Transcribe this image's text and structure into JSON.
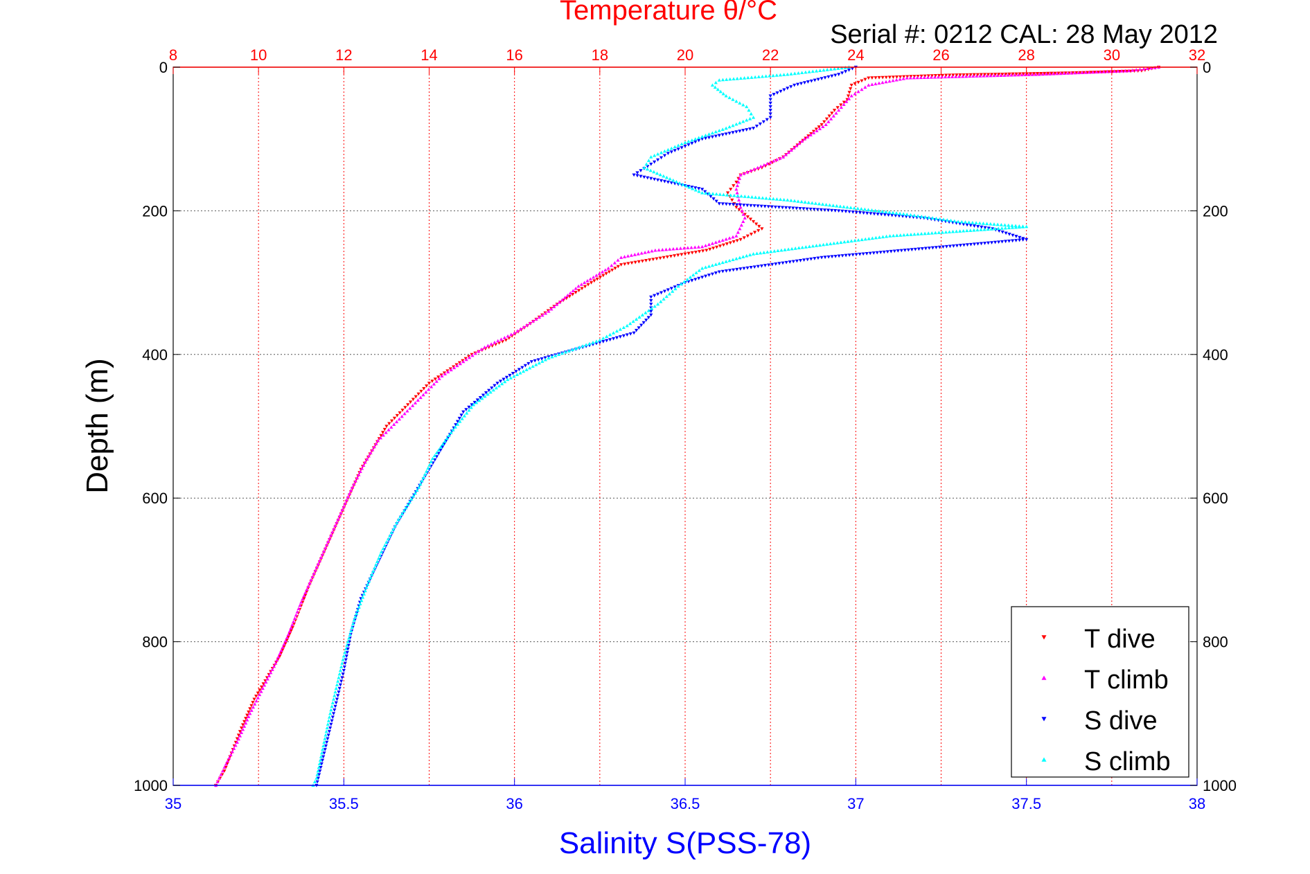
{
  "chart_data": {
    "type": "scatter",
    "title": "Temperature θ/°C",
    "subtitle": "Serial #: 0212  CAL: 28 May 2012",
    "ylabel": "Depth (m)",
    "xlabel_bottom": "Salinity S(PSS-78)",
    "xlabel_top": "Temperature θ/°C",
    "ylim": [
      0,
      1000
    ],
    "y_reversed": true,
    "y_ticks": [
      "0",
      "200",
      "400",
      "600",
      "800",
      "1000"
    ],
    "x_bottom_lim": [
      35,
      38
    ],
    "x_bottom_ticks": [
      "35",
      "35.5",
      "36",
      "36.5",
      "37",
      "37.5",
      "38"
    ],
    "x_top_lim": [
      8,
      32
    ],
    "x_top_ticks": [
      "8",
      "10",
      "12",
      "14",
      "16",
      "18",
      "20",
      "22",
      "24",
      "26",
      "28",
      "30",
      "32"
    ],
    "grid": true,
    "legend_position": "bottom-right",
    "colors": {
      "temperature_axis": "#ff0000",
      "salinity_axis": "#0000ff",
      "depth_grid": "#555555"
    },
    "series": [
      {
        "name": "T dive",
        "axis": "top",
        "color": "#ff0000",
        "marker": "triangle-down",
        "points": [
          [
            31.1,
            0
          ],
          [
            30.7,
            5
          ],
          [
            29.0,
            8
          ],
          [
            26.2,
            11
          ],
          [
            24.3,
            15
          ],
          [
            23.9,
            25
          ],
          [
            23.8,
            45
          ],
          [
            23.5,
            60
          ],
          [
            23.2,
            80
          ],
          [
            22.7,
            105
          ],
          [
            22.3,
            125
          ],
          [
            21.8,
            140
          ],
          [
            21.3,
            150
          ],
          [
            21.2,
            160
          ],
          [
            21.0,
            175
          ],
          [
            21.2,
            195
          ],
          [
            21.6,
            215
          ],
          [
            21.8,
            225
          ],
          [
            21.3,
            240
          ],
          [
            20.5,
            255
          ],
          [
            19.5,
            265
          ],
          [
            18.5,
            275
          ],
          [
            17.8,
            300
          ],
          [
            17.0,
            330
          ],
          [
            16.3,
            360
          ],
          [
            15.8,
            380
          ],
          [
            15.0,
            400
          ],
          [
            14.5,
            420
          ],
          [
            14.0,
            440
          ],
          [
            13.5,
            470
          ],
          [
            13.0,
            500
          ],
          [
            12.7,
            530
          ],
          [
            12.4,
            560
          ],
          [
            12.1,
            600
          ],
          [
            11.8,
            640
          ],
          [
            11.5,
            680
          ],
          [
            11.2,
            720
          ],
          [
            11.0,
            750
          ],
          [
            10.8,
            780
          ],
          [
            10.5,
            820
          ],
          [
            10.2,
            850
          ],
          [
            9.9,
            880
          ],
          [
            9.6,
            920
          ],
          [
            9.4,
            950
          ],
          [
            9.2,
            980
          ],
          [
            9.0,
            1000
          ]
        ]
      },
      {
        "name": "T climb",
        "axis": "top",
        "color": "#ff00ff",
        "marker": "triangle-up",
        "points": [
          [
            31.1,
            0
          ],
          [
            30.4,
            5
          ],
          [
            28.3,
            10
          ],
          [
            25.2,
            15
          ],
          [
            24.3,
            25
          ],
          [
            23.9,
            40
          ],
          [
            23.6,
            60
          ],
          [
            23.3,
            80
          ],
          [
            22.8,
            100
          ],
          [
            22.3,
            125
          ],
          [
            21.7,
            140
          ],
          [
            21.3,
            150
          ],
          [
            21.2,
            170
          ],
          [
            21.3,
            195
          ],
          [
            21.4,
            210
          ],
          [
            21.2,
            235
          ],
          [
            20.4,
            250
          ],
          [
            19.3,
            255
          ],
          [
            18.5,
            265
          ],
          [
            18.2,
            280
          ],
          [
            17.5,
            305
          ],
          [
            16.8,
            340
          ],
          [
            16.0,
            370
          ],
          [
            15.3,
            390
          ],
          [
            14.8,
            410
          ],
          [
            14.3,
            430
          ],
          [
            13.8,
            460
          ],
          [
            13.3,
            490
          ],
          [
            12.8,
            520
          ],
          [
            12.5,
            550
          ],
          [
            12.2,
            585
          ],
          [
            11.9,
            625
          ],
          [
            11.6,
            665
          ],
          [
            11.3,
            705
          ],
          [
            11.0,
            745
          ],
          [
            10.7,
            790
          ],
          [
            10.4,
            830
          ],
          [
            10.1,
            865
          ],
          [
            9.8,
            900
          ],
          [
            9.5,
            940
          ],
          [
            9.2,
            975
          ],
          [
            9.0,
            1000
          ]
        ]
      },
      {
        "name": "S dive",
        "axis": "bottom",
        "color": "#0000ff",
        "marker": "triangle-down",
        "points": [
          [
            37.0,
            0
          ],
          [
            36.95,
            10
          ],
          [
            36.82,
            25
          ],
          [
            36.75,
            40
          ],
          [
            36.75,
            55
          ],
          [
            36.75,
            70
          ],
          [
            36.7,
            85
          ],
          [
            36.55,
            100
          ],
          [
            36.45,
            120
          ],
          [
            36.4,
            135
          ],
          [
            36.35,
            150
          ],
          [
            36.55,
            170
          ],
          [
            36.6,
            190
          ],
          [
            36.95,
            200
          ],
          [
            37.2,
            210
          ],
          [
            37.4,
            225
          ],
          [
            37.5,
            240
          ],
          [
            36.9,
            265
          ],
          [
            36.6,
            285
          ],
          [
            36.5,
            300
          ],
          [
            36.4,
            320
          ],
          [
            36.4,
            345
          ],
          [
            36.35,
            370
          ],
          [
            36.2,
            390
          ],
          [
            36.05,
            410
          ],
          [
            35.95,
            440
          ],
          [
            35.85,
            480
          ],
          [
            35.8,
            520
          ],
          [
            35.75,
            560
          ],
          [
            35.7,
            600
          ],
          [
            35.65,
            640
          ],
          [
            35.6,
            690
          ],
          [
            35.55,
            740
          ],
          [
            35.52,
            790
          ],
          [
            35.5,
            840
          ],
          [
            35.48,
            880
          ],
          [
            35.46,
            920
          ],
          [
            35.44,
            960
          ],
          [
            35.42,
            1000
          ]
        ]
      },
      {
        "name": "S climb",
        "axis": "bottom",
        "color": "#00ffff",
        "marker": "triangle-up",
        "points": [
          [
            36.98,
            0
          ],
          [
            36.8,
            10
          ],
          [
            36.6,
            18
          ],
          [
            36.58,
            25
          ],
          [
            36.62,
            40
          ],
          [
            36.68,
            55
          ],
          [
            36.7,
            70
          ],
          [
            36.62,
            85
          ],
          [
            36.5,
            105
          ],
          [
            36.4,
            125
          ],
          [
            36.38,
            140
          ],
          [
            36.55,
            175
          ],
          [
            36.8,
            185
          ],
          [
            37.15,
            205
          ],
          [
            37.3,
            215
          ],
          [
            37.5,
            222
          ],
          [
            37.1,
            235
          ],
          [
            36.7,
            260
          ],
          [
            36.55,
            280
          ],
          [
            36.48,
            305
          ],
          [
            36.42,
            330
          ],
          [
            36.33,
            360
          ],
          [
            36.25,
            380
          ],
          [
            36.1,
            405
          ],
          [
            35.98,
            435
          ],
          [
            35.88,
            470
          ],
          [
            35.82,
            505
          ],
          [
            35.76,
            545
          ],
          [
            35.72,
            585
          ],
          [
            35.66,
            630
          ],
          [
            35.61,
            675
          ],
          [
            35.57,
            720
          ],
          [
            35.53,
            770
          ],
          [
            35.5,
            820
          ],
          [
            35.48,
            860
          ],
          [
            35.46,
            900
          ],
          [
            35.44,
            945
          ],
          [
            35.42,
            990
          ],
          [
            35.41,
            1000
          ]
        ]
      }
    ]
  }
}
